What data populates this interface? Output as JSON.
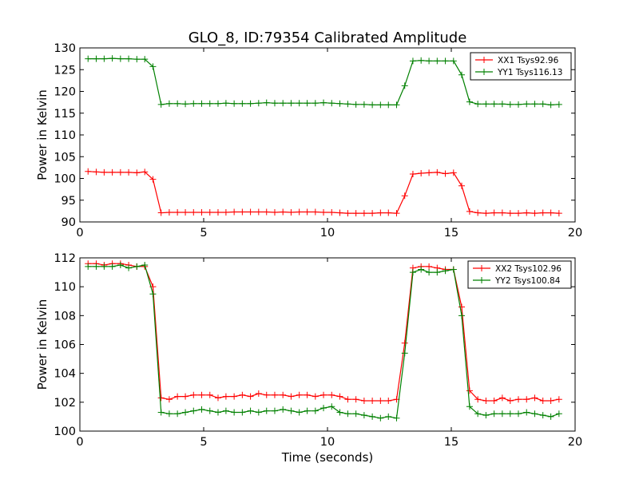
{
  "title": "GLO_8, ID:79354 Calibrated Amplitude",
  "chart_data": [
    {
      "type": "line",
      "title": "GLO_8, ID:79354 Calibrated Amplitude",
      "xlabel": "",
      "ylabel": "Power in Kelvin",
      "xlim": [
        0,
        20
      ],
      "ylim": [
        90,
        130
      ],
      "xticks": [
        "0",
        "5",
        "10",
        "15",
        "20"
      ],
      "yticks": [
        "90",
        "95",
        "100",
        "105",
        "110",
        "115",
        "120",
        "125",
        "130"
      ],
      "legend_position": "top-right",
      "x": [
        0.33,
        0.66,
        0.98,
        1.31,
        1.64,
        1.97,
        2.3,
        2.62,
        2.95,
        3.28,
        3.61,
        3.94,
        4.26,
        4.59,
        4.92,
        5.25,
        5.58,
        5.9,
        6.23,
        6.56,
        6.89,
        7.22,
        7.54,
        7.87,
        8.2,
        8.53,
        8.86,
        9.18,
        9.51,
        9.84,
        10.17,
        10.5,
        10.82,
        11.15,
        11.48,
        11.81,
        12.14,
        12.46,
        12.79,
        13.12,
        13.45,
        13.78,
        14.1,
        14.43,
        14.76,
        15.09,
        15.42,
        15.74,
        16.07,
        16.4,
        16.73,
        17.06,
        17.38,
        17.71,
        18.04,
        18.37,
        18.7,
        19.02,
        19.35
      ],
      "series": [
        {
          "name": "XX1 Tsys92.96",
          "color": "#ff0000",
          "values": [
            101.6,
            101.5,
            101.4,
            101.4,
            101.4,
            101.4,
            101.3,
            101.5,
            99.8,
            92.1,
            92.2,
            92.2,
            92.2,
            92.2,
            92.2,
            92.2,
            92.2,
            92.2,
            92.3,
            92.3,
            92.3,
            92.3,
            92.3,
            92.2,
            92.3,
            92.2,
            92.3,
            92.3,
            92.3,
            92.2,
            92.2,
            92.1,
            92.0,
            92.0,
            92.0,
            92.0,
            92.1,
            92.1,
            92.0,
            96.0,
            101.0,
            101.2,
            101.3,
            101.4,
            101.1,
            101.3,
            98.3,
            92.4,
            92.1,
            92.0,
            92.1,
            92.1,
            92.0,
            92.0,
            92.1,
            92.0,
            92.1,
            92.1,
            92.0
          ]
        },
        {
          "name": "YY1 Tsys116.13",
          "color": "#008000",
          "values": [
            127.5,
            127.5,
            127.5,
            127.6,
            127.5,
            127.5,
            127.4,
            127.4,
            125.7,
            117.0,
            117.2,
            117.2,
            117.1,
            117.2,
            117.2,
            117.2,
            117.2,
            117.3,
            117.2,
            117.2,
            117.2,
            117.3,
            117.4,
            117.3,
            117.3,
            117.3,
            117.3,
            117.3,
            117.3,
            117.4,
            117.3,
            117.2,
            117.1,
            117.0,
            117.0,
            116.9,
            116.9,
            116.9,
            116.9,
            121.3,
            127.0,
            127.1,
            127.0,
            127.0,
            127.0,
            127.0,
            123.8,
            117.6,
            117.1,
            117.1,
            117.1,
            117.1,
            117.0,
            117.0,
            117.1,
            117.1,
            117.1,
            116.9,
            117.0
          ]
        }
      ]
    },
    {
      "type": "line",
      "title": "",
      "xlabel": "Time (seconds)",
      "ylabel": "Power in Kelvin",
      "xlim": [
        0,
        20
      ],
      "ylim": [
        100,
        112
      ],
      "xticks": [
        "0",
        "5",
        "10",
        "15",
        "20"
      ],
      "yticks": [
        "100",
        "102",
        "104",
        "106",
        "108",
        "110",
        "112"
      ],
      "legend_position": "top-right",
      "x": [
        0.33,
        0.66,
        0.98,
        1.31,
        1.64,
        1.97,
        2.3,
        2.62,
        2.95,
        3.28,
        3.61,
        3.94,
        4.26,
        4.59,
        4.92,
        5.25,
        5.58,
        5.9,
        6.23,
        6.56,
        6.89,
        7.22,
        7.54,
        7.87,
        8.2,
        8.53,
        8.86,
        9.18,
        9.51,
        9.84,
        10.17,
        10.5,
        10.82,
        11.15,
        11.48,
        11.81,
        12.14,
        12.46,
        12.79,
        13.12,
        13.45,
        13.78,
        14.1,
        14.43,
        14.76,
        15.09,
        15.42,
        15.74,
        16.07,
        16.4,
        16.73,
        17.06,
        17.38,
        17.71,
        18.04,
        18.37,
        18.7,
        19.02,
        19.35
      ],
      "series": [
        {
          "name": "XX2 Tsys102.96",
          "color": "#ff0000",
          "values": [
            111.6,
            111.6,
            111.5,
            111.6,
            111.6,
            111.5,
            111.4,
            111.4,
            110.0,
            102.3,
            102.2,
            102.4,
            102.4,
            102.5,
            102.5,
            102.5,
            102.3,
            102.4,
            102.4,
            102.5,
            102.4,
            102.6,
            102.5,
            102.5,
            102.5,
            102.4,
            102.5,
            102.5,
            102.4,
            102.5,
            102.5,
            102.4,
            102.2,
            102.2,
            102.1,
            102.1,
            102.1,
            102.1,
            102.2,
            106.1,
            111.3,
            111.4,
            111.4,
            111.3,
            111.2,
            111.2,
            108.6,
            102.8,
            102.2,
            102.1,
            102.1,
            102.3,
            102.1,
            102.2,
            102.2,
            102.3,
            102.1,
            102.1,
            102.2
          ]
        },
        {
          "name": "YY2 Tsys100.84",
          "color": "#008000",
          "values": [
            111.4,
            111.4,
            111.4,
            111.4,
            111.5,
            111.3,
            111.4,
            111.5,
            109.5,
            101.3,
            101.2,
            101.2,
            101.3,
            101.4,
            101.5,
            101.4,
            101.3,
            101.4,
            101.3,
            101.3,
            101.4,
            101.3,
            101.4,
            101.4,
            101.5,
            101.4,
            101.3,
            101.4,
            101.4,
            101.6,
            101.7,
            101.3,
            101.2,
            101.2,
            101.1,
            101.0,
            100.9,
            101.0,
            100.9,
            105.4,
            111.0,
            111.2,
            111.0,
            111.0,
            111.1,
            111.2,
            108.0,
            101.7,
            101.2,
            101.1,
            101.2,
            101.2,
            101.2,
            101.2,
            101.3,
            101.2,
            101.1,
            101.0,
            101.2
          ]
        }
      ]
    }
  ]
}
